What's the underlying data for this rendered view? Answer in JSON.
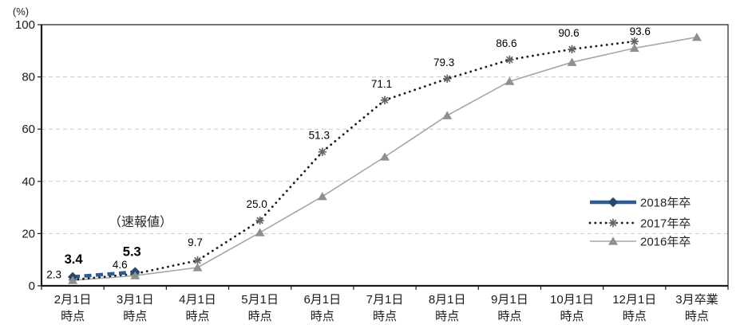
{
  "chart_data": {
    "type": "line",
    "title": "",
    "unit_label": "(%)",
    "annotation": "（速報値）",
    "y_axis": {
      "min": 0,
      "max": 100,
      "ticks": [
        0,
        20,
        40,
        60,
        80,
        100
      ],
      "grid": true
    },
    "x_axis": {
      "tick_label_line2": "時点"
    },
    "categories": [
      {
        "l1": "2月1日",
        "l2": "時点"
      },
      {
        "l1": "3月1日",
        "l2": "時点"
      },
      {
        "l1": "4月1日",
        "l2": "時点"
      },
      {
        "l1": "5月1日",
        "l2": "時点"
      },
      {
        "l1": "6月1日",
        "l2": "時点"
      },
      {
        "l1": "7月1日",
        "l2": "時点"
      },
      {
        "l1": "8月1日",
        "l2": "時点"
      },
      {
        "l1": "9月1日",
        "l2": "時点"
      },
      {
        "l1": "10月1日",
        "l2": "時点"
      },
      {
        "l1": "12月1日",
        "l2": "時点"
      },
      {
        "l1": "3月卒業",
        "l2": "時点"
      }
    ],
    "series": [
      {
        "name": "2018年卒",
        "style": "thick-dashed",
        "marker": "diamond",
        "color": "#2E5C8F",
        "marker_color": "#24476B",
        "values": [
          3.4,
          5.3,
          null,
          null,
          null,
          null,
          null,
          null,
          null,
          null,
          null
        ],
        "labels": [
          "3.4",
          "5.3",
          null,
          null,
          null,
          null,
          null,
          null,
          null,
          null,
          null
        ],
        "labels_bold": true
      },
      {
        "name": "2017年卒",
        "style": "dotted",
        "marker": "asterisk",
        "color": "#1A1A1A",
        "marker_color": "#666666",
        "values": [
          2.3,
          4.6,
          9.7,
          25.0,
          51.3,
          71.1,
          79.3,
          86.6,
          90.6,
          93.6,
          null
        ],
        "labels": [
          "2.3",
          "4.6",
          "9.7",
          "25.0",
          "51.3",
          "71.1",
          "79.3",
          "86.6",
          "90.6",
          "93.6",
          null
        ],
        "labels_bold": false
      },
      {
        "name": "2016年卒",
        "style": "solid",
        "marker": "triangle",
        "color": "#A6A6A6",
        "marker_color": "#8F8F8F",
        "values": [
          2.1,
          3.9,
          7.0,
          20.4,
          34.2,
          49.4,
          65.2,
          78.3,
          85.6,
          91.0,
          95.2
        ],
        "values_estimated": true,
        "labels": [
          null,
          null,
          null,
          null,
          null,
          null,
          null,
          null,
          null,
          null,
          null
        ],
        "labels_bold": false
      }
    ],
    "legend": {
      "position": "inside-right"
    }
  }
}
